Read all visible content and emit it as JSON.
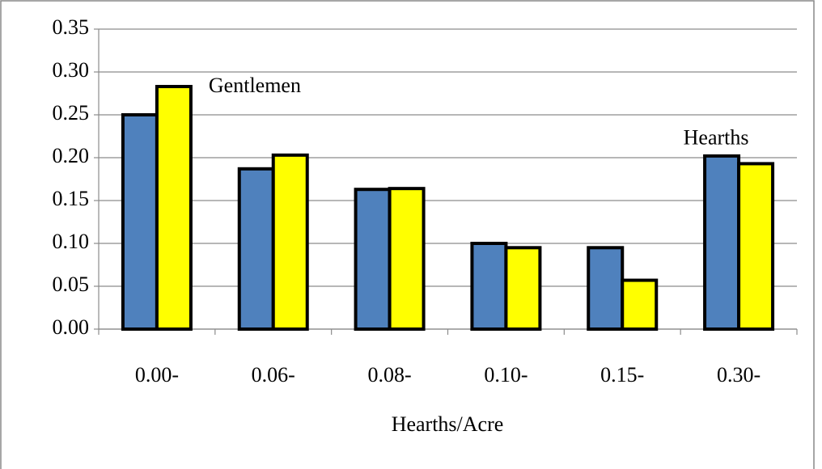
{
  "chart_data": {
    "type": "bar",
    "x_label": "Hearths/Acre",
    "categories": [
      "0.00-",
      "0.06-",
      "0.08-",
      "0.10-",
      "0.15-",
      "0.30-"
    ],
    "series": [
      {
        "name": "Gentlemen",
        "color": "#4f81bd",
        "values": [
          0.25,
          0.187,
          0.163,
          0.1,
          0.095,
          0.202
        ]
      },
      {
        "name": "Hearths",
        "color": "#ffff00",
        "values": [
          0.283,
          0.203,
          0.164,
          0.095,
          0.057,
          0.193
        ]
      }
    ],
    "ylim": [
      0,
      0.35
    ],
    "yticks": [
      {
        "value": 0,
        "label": "0.00"
      },
      0.05,
      {
        "value": 0.1,
        "label": "0.10"
      },
      0.15,
      {
        "value": 0.2,
        "label": "0.20"
      },
      0.25,
      {
        "value": 0.3,
        "label": "0.30"
      },
      0.35
    ],
    "grid": true
  }
}
